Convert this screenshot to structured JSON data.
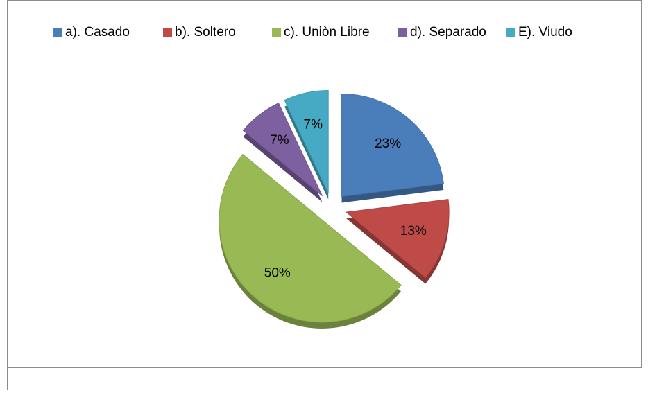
{
  "chart_data": {
    "type": "pie",
    "categories": [
      "a). Casado",
      "b). Soltero",
      "c). Uniòn Libre",
      "d). Separado",
      "E). Viudo"
    ],
    "values": [
      23,
      13,
      50,
      7,
      7
    ],
    "value_labels": [
      "23%",
      "13%",
      "50%",
      "7%",
      "7%"
    ],
    "colors": [
      "#4a7ebb",
      "#be4b48",
      "#98b954",
      "#7d60a0",
      "#46aac5"
    ],
    "legend": "top"
  }
}
